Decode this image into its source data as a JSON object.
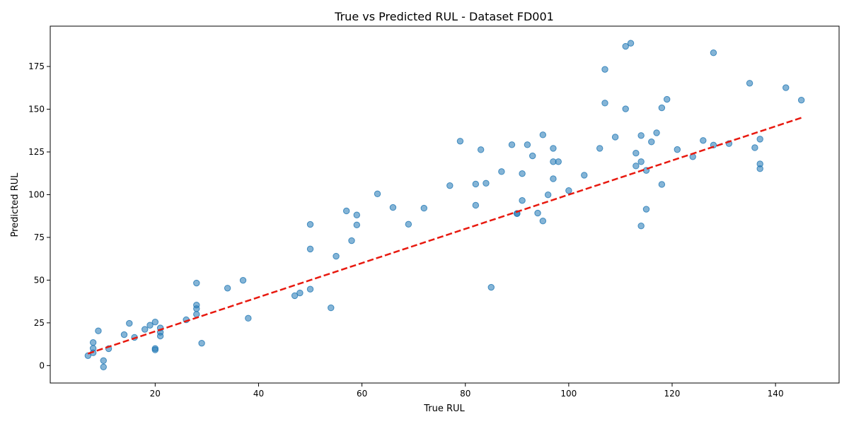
{
  "chart_data": {
    "type": "scatter",
    "title": "True vs Predicted RUL - Dataset FD001",
    "xlabel": "True RUL",
    "ylabel": "Predicted RUL",
    "xlim": [
      -0.3,
      152.3
    ],
    "ylim": [
      -10.2,
      198.6
    ],
    "xticks": [
      20,
      40,
      60,
      80,
      100,
      120,
      140
    ],
    "yticks": [
      0,
      25,
      50,
      75,
      100,
      125,
      150,
      175
    ],
    "grid": false,
    "legend": false,
    "colors": {
      "points": "#1f77b4",
      "ideal_line": "#e8190f"
    },
    "reference_line": {
      "x": [
        7,
        145
      ],
      "y": [
        7,
        145
      ],
      "style": "dashed"
    },
    "points": [
      {
        "x": 7,
        "y": 5.8
      },
      {
        "x": 8,
        "y": 13.5
      },
      {
        "x": 8,
        "y": 10.1
      },
      {
        "x": 8,
        "y": 7.5
      },
      {
        "x": 9,
        "y": 20.3
      },
      {
        "x": 10,
        "y": 2.9
      },
      {
        "x": 10,
        "y": -0.8
      },
      {
        "x": 11,
        "y": 9.9
      },
      {
        "x": 14,
        "y": 18.1
      },
      {
        "x": 15,
        "y": 24.7
      },
      {
        "x": 16,
        "y": 16.5
      },
      {
        "x": 18,
        "y": 21.2
      },
      {
        "x": 19,
        "y": 23.6
      },
      {
        "x": 20,
        "y": 25.5
      },
      {
        "x": 20,
        "y": 10.0
      },
      {
        "x": 20,
        "y": 9.2
      },
      {
        "x": 21,
        "y": 22.0
      },
      {
        "x": 21,
        "y": 19.5
      },
      {
        "x": 21,
        "y": 17.3
      },
      {
        "x": 26,
        "y": 26.8
      },
      {
        "x": 28,
        "y": 48.3
      },
      {
        "x": 28,
        "y": 35.4
      },
      {
        "x": 28,
        "y": 33.3
      },
      {
        "x": 28,
        "y": 30.0
      },
      {
        "x": 29,
        "y": 13.1
      },
      {
        "x": 34,
        "y": 45.3
      },
      {
        "x": 37,
        "y": 49.9
      },
      {
        "x": 38,
        "y": 27.7
      },
      {
        "x": 47,
        "y": 40.9
      },
      {
        "x": 48,
        "y": 42.5
      },
      {
        "x": 50,
        "y": 82.6
      },
      {
        "x": 50,
        "y": 68.2
      },
      {
        "x": 50,
        "y": 44.7
      },
      {
        "x": 54,
        "y": 33.8
      },
      {
        "x": 55,
        "y": 64.0
      },
      {
        "x": 57,
        "y": 90.5
      },
      {
        "x": 58,
        "y": 73.1
      },
      {
        "x": 59,
        "y": 88.1
      },
      {
        "x": 59,
        "y": 82.3
      },
      {
        "x": 63,
        "y": 100.5
      },
      {
        "x": 66,
        "y": 92.5
      },
      {
        "x": 69,
        "y": 82.7
      },
      {
        "x": 72,
        "y": 92.1
      },
      {
        "x": 77,
        "y": 105.3
      },
      {
        "x": 79,
        "y": 131.3
      },
      {
        "x": 82,
        "y": 106.2
      },
      {
        "x": 82,
        "y": 93.8
      },
      {
        "x": 83,
        "y": 126.3
      },
      {
        "x": 84,
        "y": 106.7
      },
      {
        "x": 85,
        "y": 45.8
      },
      {
        "x": 87,
        "y": 113.5
      },
      {
        "x": 89,
        "y": 129.2
      },
      {
        "x": 90,
        "y": 88.9
      },
      {
        "x": 90,
        "y": 89.0
      },
      {
        "x": 91,
        "y": 112.3
      },
      {
        "x": 91,
        "y": 96.6
      },
      {
        "x": 92,
        "y": 129.2
      },
      {
        "x": 93,
        "y": 122.7
      },
      {
        "x": 94,
        "y": 89.2
      },
      {
        "x": 95,
        "y": 135.0
      },
      {
        "x": 95,
        "y": 84.6
      },
      {
        "x": 96,
        "y": 99.9
      },
      {
        "x": 97,
        "y": 127.1
      },
      {
        "x": 97,
        "y": 119.3
      },
      {
        "x": 97,
        "y": 109.3
      },
      {
        "x": 98,
        "y": 119.3
      },
      {
        "x": 100,
        "y": 102.4
      },
      {
        "x": 103,
        "y": 111.4
      },
      {
        "x": 106,
        "y": 127.1
      },
      {
        "x": 107,
        "y": 173.3
      },
      {
        "x": 107,
        "y": 153.6
      },
      {
        "x": 109,
        "y": 133.7
      },
      {
        "x": 111,
        "y": 186.8
      },
      {
        "x": 111,
        "y": 150.2
      },
      {
        "x": 112,
        "y": 188.6
      },
      {
        "x": 113,
        "y": 124.3
      },
      {
        "x": 113,
        "y": 116.8
      },
      {
        "x": 114,
        "y": 134.6
      },
      {
        "x": 114,
        "y": 119.3
      },
      {
        "x": 114,
        "y": 81.7
      },
      {
        "x": 115,
        "y": 114.2
      },
      {
        "x": 115,
        "y": 91.5
      },
      {
        "x": 116,
        "y": 130.9
      },
      {
        "x": 117,
        "y": 136.2
      },
      {
        "x": 118,
        "y": 150.8
      },
      {
        "x": 118,
        "y": 106.0
      },
      {
        "x": 119,
        "y": 155.8
      },
      {
        "x": 121,
        "y": 126.4
      },
      {
        "x": 124,
        "y": 122.2
      },
      {
        "x": 126,
        "y": 131.7
      },
      {
        "x": 128,
        "y": 183.0
      },
      {
        "x": 128,
        "y": 129.0
      },
      {
        "x": 131,
        "y": 129.9
      },
      {
        "x": 135,
        "y": 165.2
      },
      {
        "x": 136,
        "y": 127.5
      },
      {
        "x": 137,
        "y": 132.5
      },
      {
        "x": 137,
        "y": 118.0
      },
      {
        "x": 137,
        "y": 115.2
      },
      {
        "x": 142,
        "y": 162.6
      },
      {
        "x": 145,
        "y": 155.3
      }
    ]
  }
}
